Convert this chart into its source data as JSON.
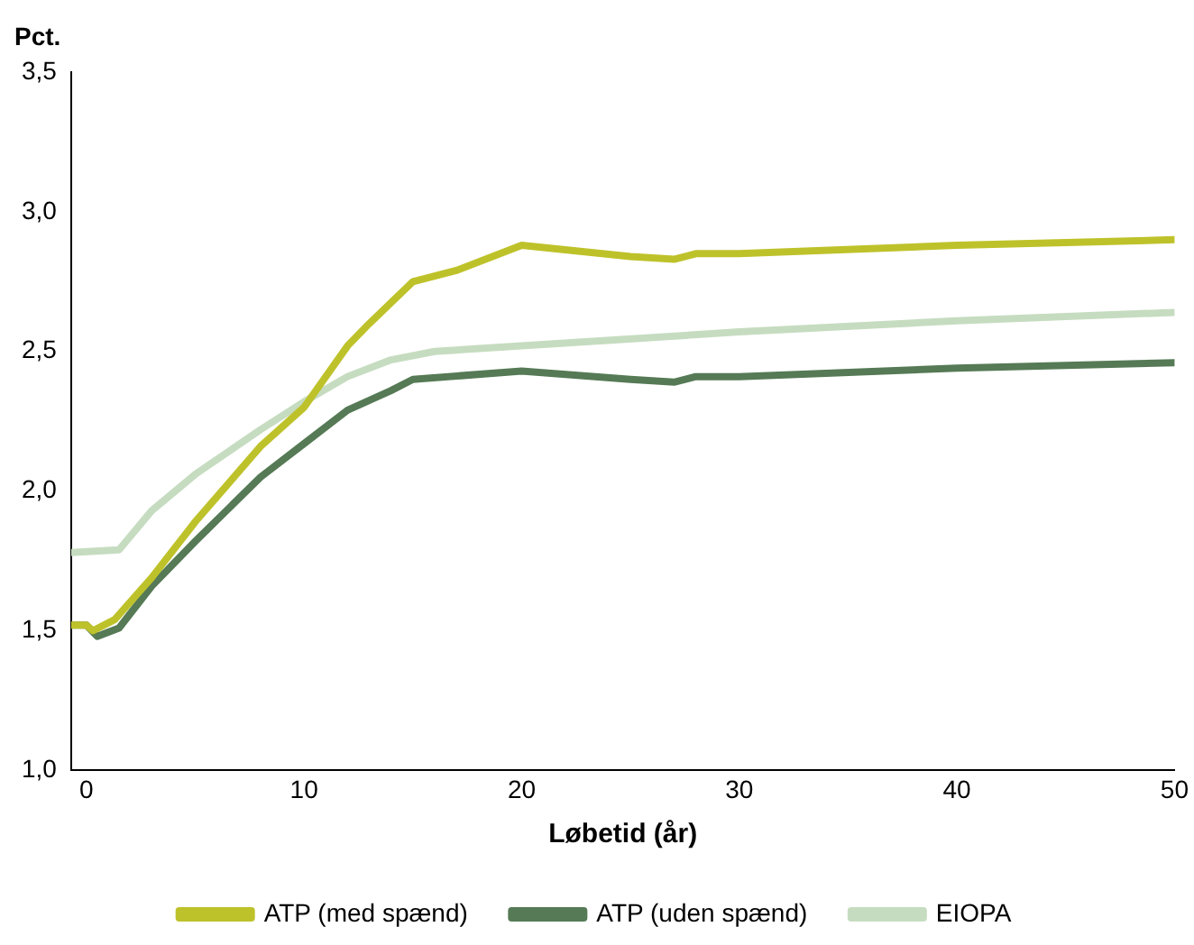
{
  "chart_data": {
    "type": "line",
    "ylabel": "Pct.",
    "xlabel": "Løbetid (år)",
    "xlim": [
      -0.7,
      50
    ],
    "xticks": [
      0,
      10,
      20,
      30,
      40,
      50
    ],
    "ylim": [
      1.0,
      3.5
    ],
    "yticks": [
      {
        "value": 1.0,
        "label": "1,0"
      },
      {
        "value": 1.5,
        "label": "1,5"
      },
      {
        "value": 2.0,
        "label": "2,0"
      },
      {
        "value": 2.5,
        "label": "2,5"
      },
      {
        "value": 3.0,
        "label": "3,0"
      },
      {
        "value": 3.5,
        "label": "3,5"
      }
    ],
    "grid": false,
    "legend": "bottom",
    "marker": "none",
    "line_style": "solid",
    "series": [
      {
        "name": "ATP (med spænd)",
        "color": "#bec22a",
        "x": [
          -0.7,
          0,
          0.3,
          1.3,
          3,
          5,
          8,
          10,
          12,
          13,
          15,
          17,
          20,
          25,
          27,
          28,
          30,
          40,
          50
        ],
        "values": [
          1.52,
          1.52,
          1.5,
          1.54,
          1.69,
          1.89,
          2.16,
          2.3,
          2.52,
          2.6,
          2.75,
          2.79,
          2.88,
          2.84,
          2.83,
          2.85,
          2.85,
          2.88,
          2.9
        ]
      },
      {
        "name": "ATP (uden spænd)",
        "color": "#557a55",
        "x": [
          -0.7,
          0,
          0.5,
          1.5,
          3,
          5,
          8,
          10,
          12,
          14,
          15,
          20,
          25,
          27,
          28,
          30,
          40,
          50
        ],
        "values": [
          1.52,
          1.52,
          1.48,
          1.51,
          1.66,
          1.82,
          2.05,
          2.17,
          2.29,
          2.36,
          2.4,
          2.43,
          2.4,
          2.39,
          2.41,
          2.41,
          2.44,
          2.46
        ]
      },
      {
        "name": "EIOPA",
        "color": "#c6dcc0",
        "x": [
          -0.7,
          1.5,
          3,
          5,
          8,
          10,
          12,
          14,
          16,
          20,
          30,
          40,
          50
        ],
        "values": [
          1.78,
          1.79,
          1.93,
          2.06,
          2.22,
          2.32,
          2.41,
          2.47,
          2.5,
          2.52,
          2.57,
          2.61,
          2.64
        ]
      }
    ]
  }
}
